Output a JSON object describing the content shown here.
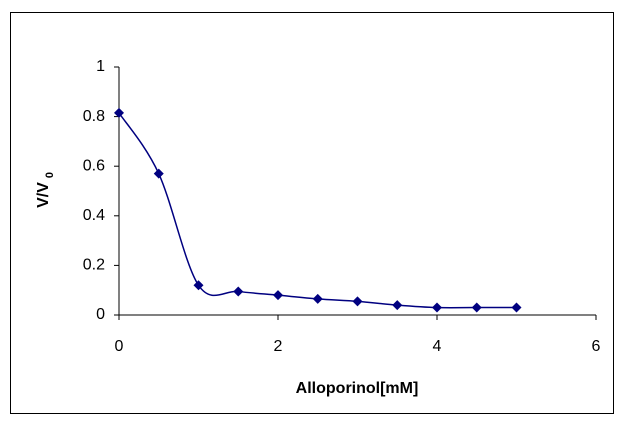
{
  "chart_data": {
    "type": "scatter",
    "line": "smooth",
    "x_label": "Alloporinol[mM]",
    "y_label": "V/V",
    "y_label_subscript": "0",
    "series": [
      {
        "color": "#000080",
        "x": [
          0,
          0.5,
          1,
          1.5,
          2,
          2.5,
          3,
          3.5,
          4,
          4.5,
          5
        ],
        "values": [
          0.815,
          0.57,
          0.12,
          0.095,
          0.08,
          0.065,
          0.055,
          0.04,
          0.03,
          0.03,
          0.03
        ]
      }
    ],
    "xlim": [
      0,
      6
    ],
    "xticks": [
      0,
      2,
      4,
      6
    ],
    "ylim": [
      0,
      1
    ],
    "yticks": [
      0,
      0.2,
      0.4,
      0.6,
      0.8,
      1
    ]
  }
}
